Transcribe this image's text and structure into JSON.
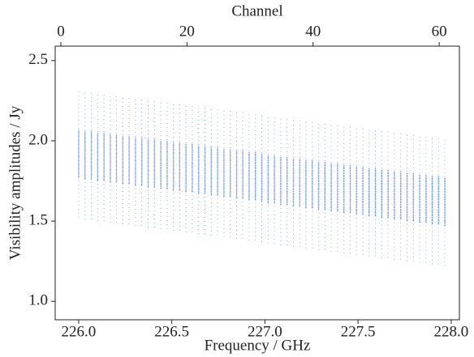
{
  "chart_data": {
    "type": "range",
    "xlabel": "Frequency / GHz",
    "ylabel": "Visibility amplitudes / Jy",
    "x2label": "Channel",
    "color": "#4a6fe3",
    "x": [
      226.0,
      226.034,
      226.068,
      226.102,
      226.136,
      226.17,
      226.203,
      226.237,
      226.271,
      226.305,
      226.339,
      226.373,
      226.407,
      226.441,
      226.475,
      226.509,
      226.542,
      226.576,
      226.61,
      226.644,
      226.678,
      226.712,
      226.746,
      226.78,
      226.814,
      226.848,
      226.881,
      226.915,
      226.949,
      226.983,
      227.017,
      227.051,
      227.085,
      227.119,
      227.153,
      227.187,
      227.22,
      227.254,
      227.288,
      227.322,
      227.356,
      227.39,
      227.424,
      227.458,
      227.492,
      227.526,
      227.559,
      227.593,
      227.627,
      227.661,
      227.695,
      227.729,
      227.763,
      227.797,
      227.831,
      227.865,
      227.898,
      227.932,
      227.966
    ],
    "low": [
      1.77,
      1.76,
      1.76,
      1.75,
      1.75,
      1.74,
      1.74,
      1.73,
      1.73,
      1.72,
      1.72,
      1.71,
      1.71,
      1.7,
      1.7,
      1.69,
      1.69,
      1.68,
      1.68,
      1.67,
      1.67,
      1.66,
      1.66,
      1.65,
      1.65,
      1.64,
      1.64,
      1.63,
      1.63,
      1.62,
      1.61,
      1.61,
      1.6,
      1.6,
      1.59,
      1.59,
      1.58,
      1.58,
      1.57,
      1.57,
      1.56,
      1.56,
      1.55,
      1.55,
      1.54,
      1.54,
      1.53,
      1.53,
      1.52,
      1.52,
      1.51,
      1.51,
      1.5,
      1.5,
      1.49,
      1.49,
      1.48,
      1.48,
      1.47
    ],
    "high": [
      2.07,
      2.06,
      2.06,
      2.05,
      2.05,
      2.04,
      2.04,
      2.03,
      2.03,
      2.02,
      2.02,
      2.01,
      2.01,
      2.0,
      2.0,
      1.99,
      1.99,
      1.98,
      1.98,
      1.97,
      1.97,
      1.96,
      1.96,
      1.95,
      1.95,
      1.94,
      1.94,
      1.93,
      1.93,
      1.92,
      1.91,
      1.91,
      1.9,
      1.9,
      1.89,
      1.89,
      1.88,
      1.88,
      1.87,
      1.87,
      1.86,
      1.86,
      1.85,
      1.85,
      1.84,
      1.84,
      1.83,
      1.83,
      1.82,
      1.82,
      1.81,
      1.81,
      1.8,
      1.8,
      1.79,
      1.79,
      1.78,
      1.78,
      1.77
    ],
    "min": [
      1.52,
      1.51,
      1.51,
      1.5,
      1.5,
      1.49,
      1.49,
      1.48,
      1.48,
      1.47,
      1.47,
      1.46,
      1.46,
      1.45,
      1.45,
      1.44,
      1.44,
      1.43,
      1.43,
      1.42,
      1.42,
      1.41,
      1.41,
      1.4,
      1.4,
      1.39,
      1.39,
      1.38,
      1.38,
      1.37,
      1.36,
      1.36,
      1.35,
      1.35,
      1.34,
      1.34,
      1.33,
      1.33,
      1.32,
      1.32,
      1.31,
      1.31,
      1.3,
      1.3,
      1.29,
      1.29,
      1.28,
      1.28,
      1.27,
      1.27,
      1.26,
      1.26,
      1.25,
      1.25,
      1.24,
      1.24,
      1.23,
      1.23,
      1.22
    ],
    "max": [
      2.32,
      2.31,
      2.31,
      2.3,
      2.3,
      2.29,
      2.29,
      2.28,
      2.28,
      2.27,
      2.27,
      2.26,
      2.26,
      2.25,
      2.25,
      2.24,
      2.24,
      2.23,
      2.23,
      2.22,
      2.22,
      2.21,
      2.21,
      2.2,
      2.2,
      2.19,
      2.19,
      2.18,
      2.18,
      2.17,
      2.16,
      2.16,
      2.15,
      2.15,
      2.14,
      2.14,
      2.13,
      2.13,
      2.12,
      2.12,
      2.11,
      2.11,
      2.1,
      2.1,
      2.09,
      2.09,
      2.08,
      2.08,
      2.07,
      2.07,
      2.06,
      2.06,
      2.05,
      2.05,
      2.04,
      2.04,
      2.03,
      2.03,
      2.02
    ],
    "xlim": [
      225.874,
      228.044
    ],
    "xticks": [
      {
        "value": 226,
        "label": "226.0"
      },
      {
        "value": 226.5,
        "label": "226.5"
      },
      {
        "value": 227,
        "label": "227.0"
      },
      {
        "value": 227.5,
        "label": "227.5"
      },
      {
        "value": 228,
        "label": "228.0"
      }
    ],
    "ylim": [
      0.885,
      2.59
    ],
    "yticks": [
      {
        "value": 1,
        "label": "1.0"
      },
      1.5,
      {
        "value": 2,
        "label": "2.0"
      },
      2.5
    ],
    "x2lim": [
      -0.9,
      63.2
    ],
    "x2ticks": [
      0,
      20,
      40,
      60
    ]
  }
}
